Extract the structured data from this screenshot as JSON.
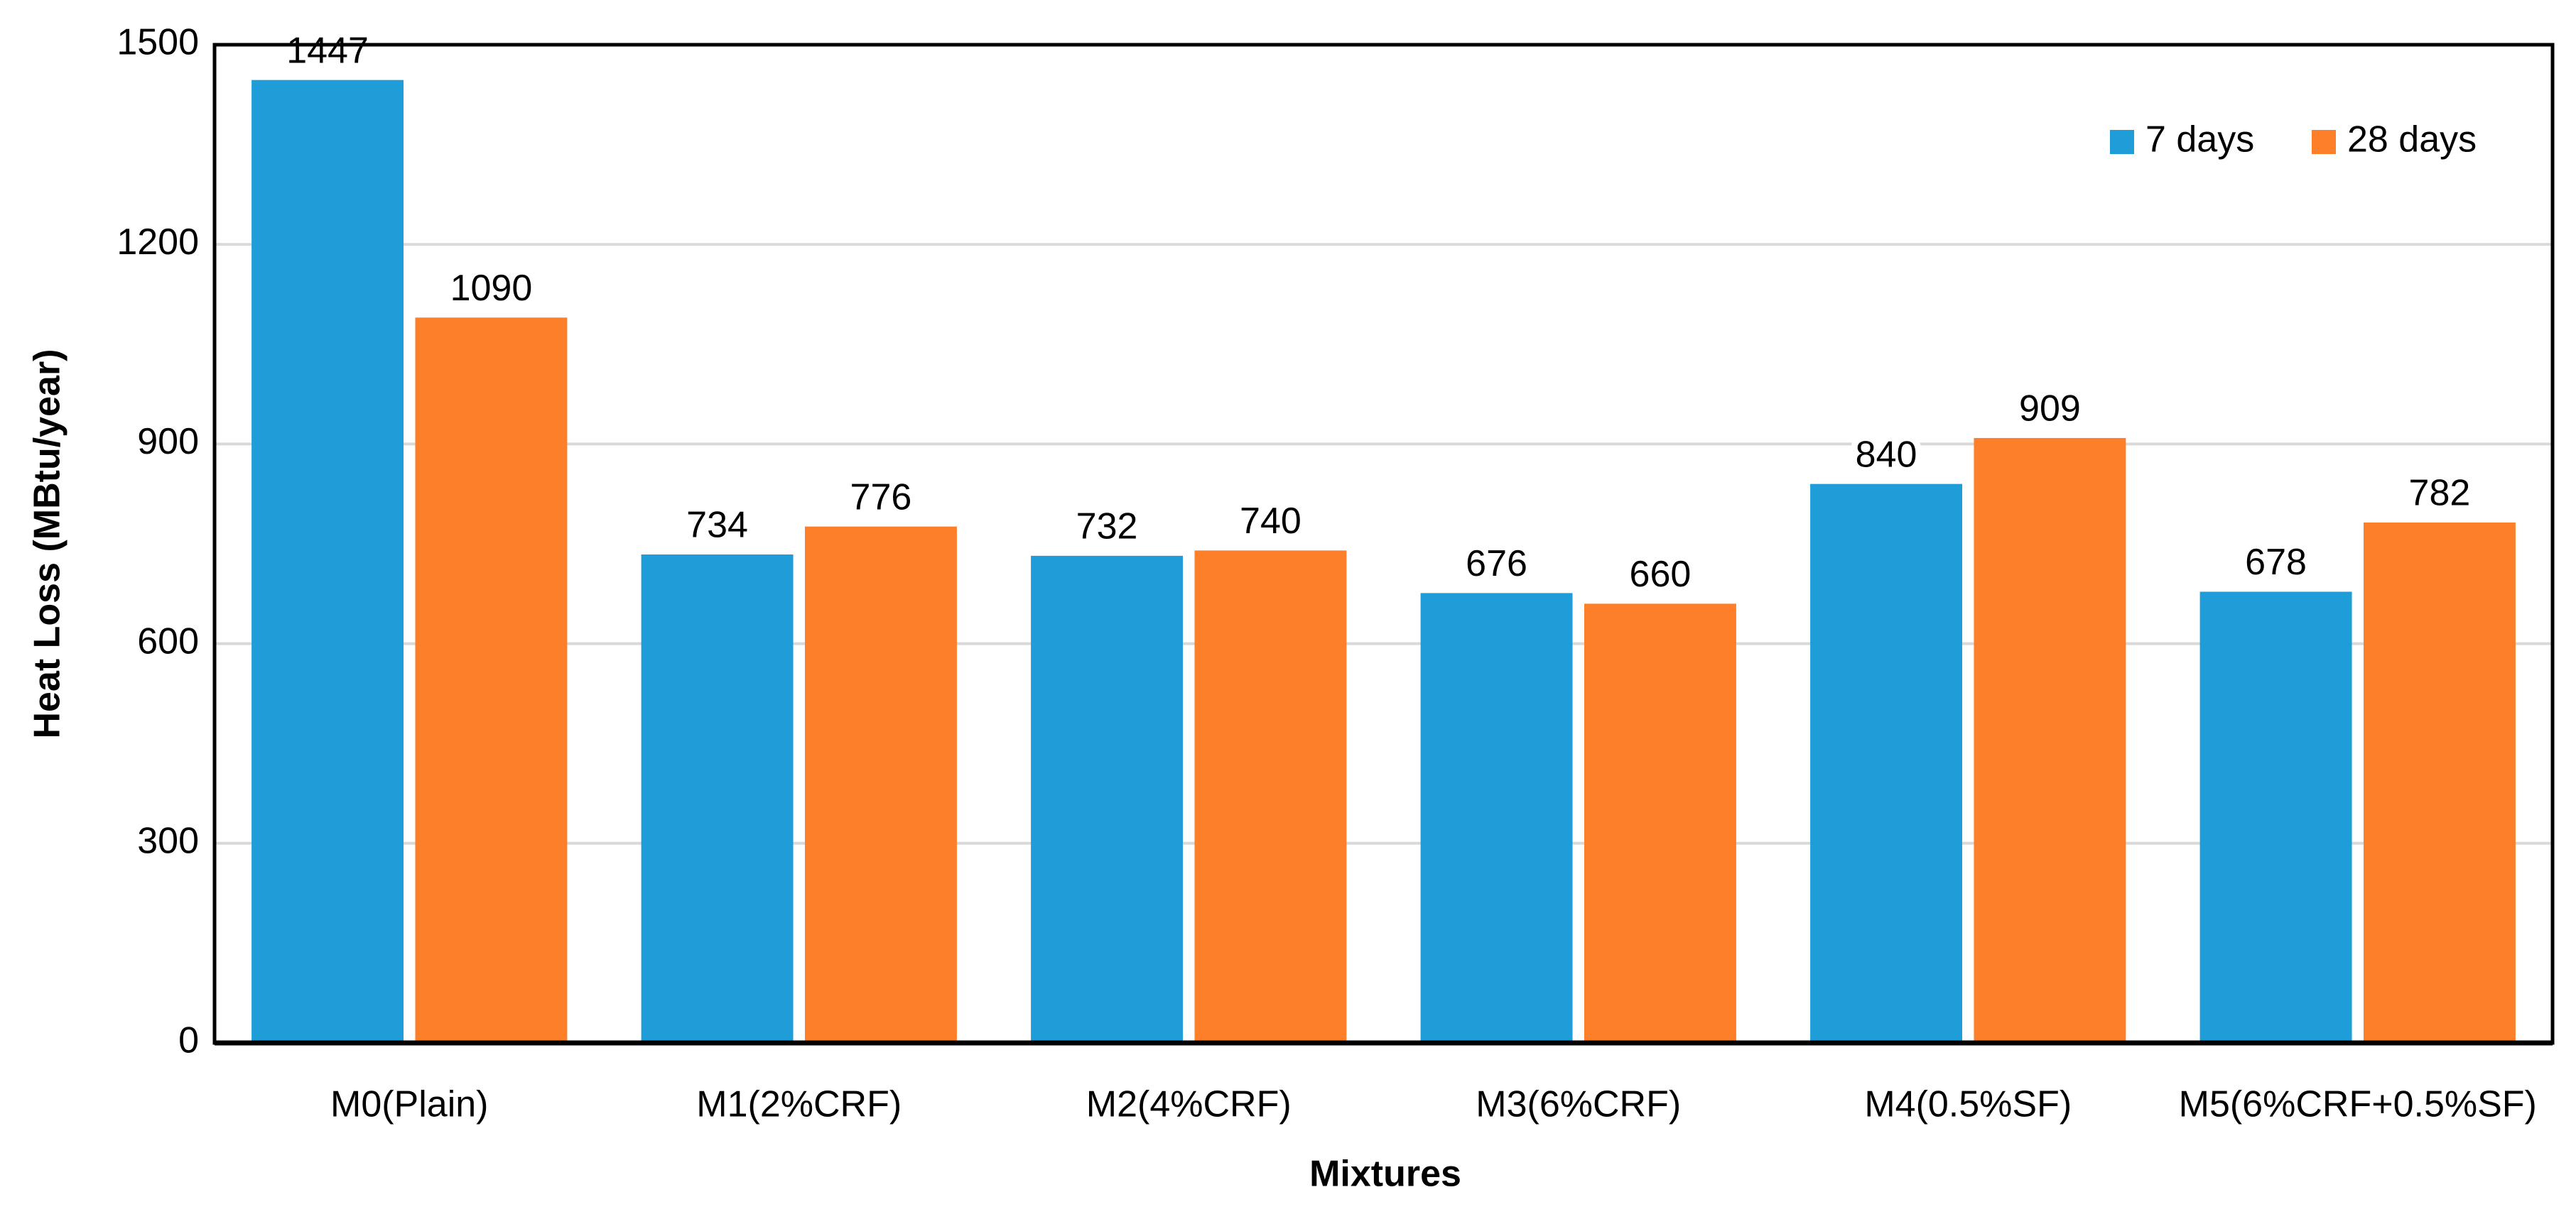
{
  "chart_data": {
    "type": "bar",
    "x_label": "Mixtures",
    "y_label": "Heat Loss (MBtu/year)",
    "categories": [
      "M0(Plain)",
      "M1(2%CRF)",
      "M2(4%CRF)",
      "M3(6%CRF)",
      "M4(0.5%SF)",
      "M5(6%CRF+0.5%SF)"
    ],
    "series": [
      {
        "name": "7 days",
        "color": "#1f9dd9",
        "values": [
          1447,
          734,
          732,
          676,
          840,
          678
        ]
      },
      {
        "name": "28 days",
        "color": "#fe7f2a",
        "values": [
          1090,
          776,
          740,
          660,
          909,
          782
        ]
      }
    ],
    "ylim": [
      0,
      1500
    ],
    "yticks": [
      0,
      300,
      600,
      900,
      1200,
      1500
    ],
    "grid": true,
    "legend": "upper right"
  }
}
